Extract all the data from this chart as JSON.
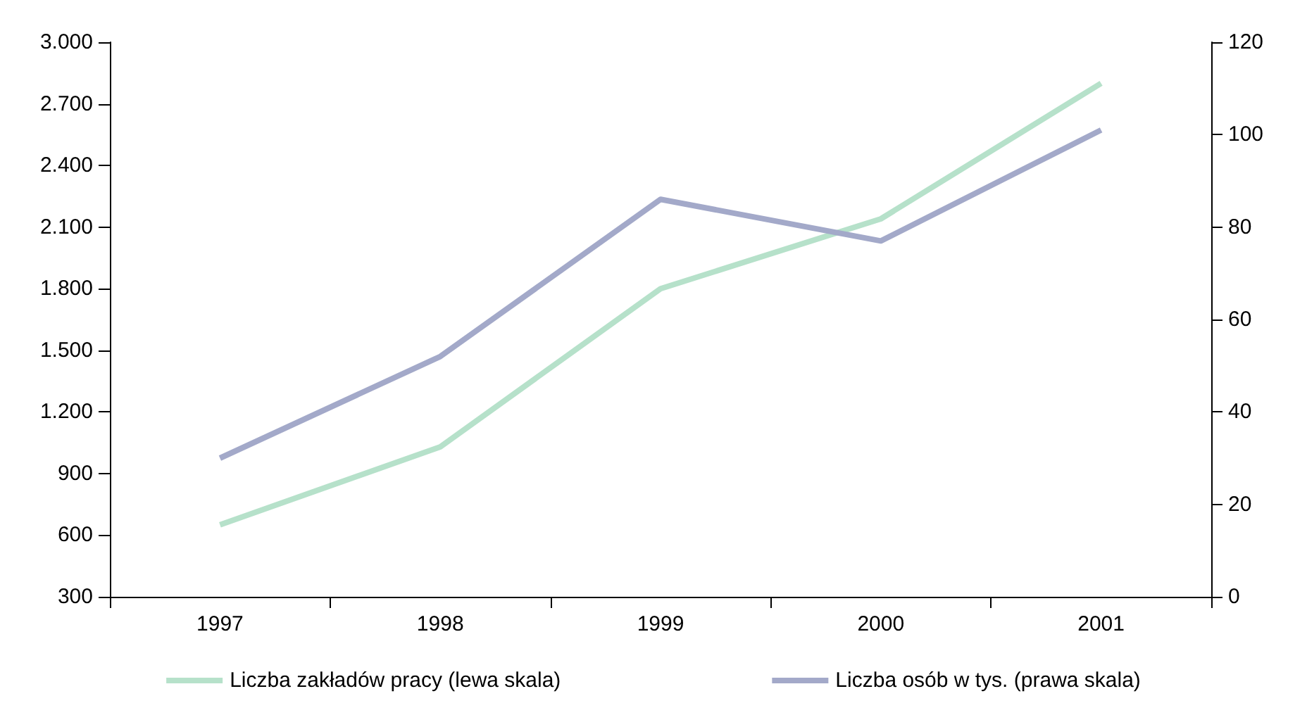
{
  "chart_data": {
    "type": "line",
    "categories": [
      "1997",
      "1998",
      "1999",
      "2000",
      "2001"
    ],
    "series": [
      {
        "name": "Liczba zakładów pracy (lewa skala)",
        "color": "#b6e1ca",
        "values": [
          650,
          1030,
          1800,
          2140,
          2800
        ]
      },
      {
        "name": "Liczba osób w tys. (prawa skala)",
        "color": "#a3a9c9",
        "values": [
          30,
          52,
          86,
          77,
          101
        ],
        "axis": "y2"
      }
    ],
    "ylim": [
      300,
      3000
    ],
    "yticks": [
      {
        "value": 300,
        "label": "300"
      },
      {
        "value": 600,
        "label": "600"
      },
      {
        "value": 900,
        "label": "900"
      },
      {
        "value": 1200,
        "label": "1.200"
      },
      {
        "value": 1500,
        "label": "1.500"
      },
      {
        "value": 1800,
        "label": "1.800"
      },
      {
        "value": 2100,
        "label": "2.100"
      },
      {
        "value": 2400,
        "label": "2.400"
      },
      {
        "value": 2700,
        "label": "2.700"
      },
      {
        "value": 3000,
        "label": "3.000"
      }
    ],
    "y2lim": [
      0,
      120
    ],
    "y2ticks": [
      0,
      20,
      40,
      60,
      80,
      100,
      120
    ],
    "grid": false,
    "legend": "bottom",
    "marker": "none",
    "line_style": "solid"
  }
}
